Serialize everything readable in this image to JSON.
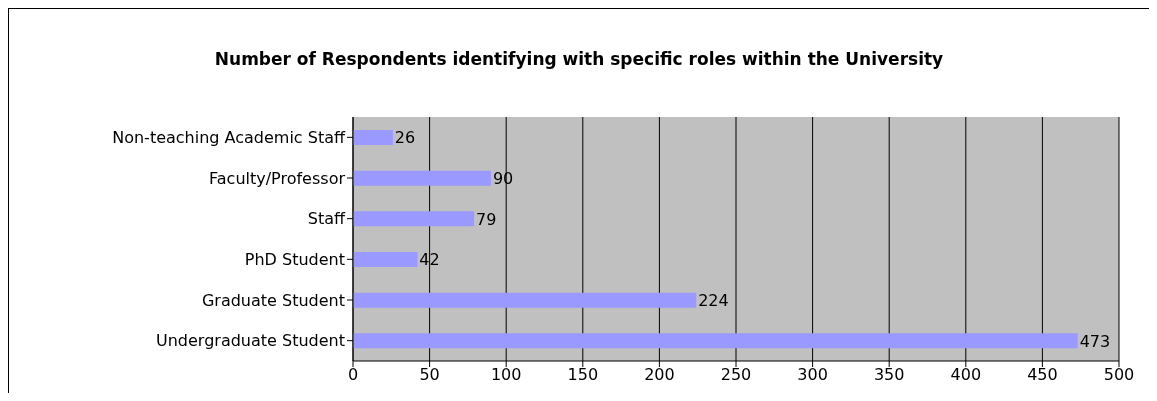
{
  "chart_data": {
    "type": "bar",
    "orientation": "horizontal",
    "title": "Number of Respondents identifying with specific roles within the University",
    "categories": [
      "Non-teaching Academic Staff",
      "Faculty/Professor",
      "Staff",
      "PhD Student",
      "Graduate Student",
      "Undergraduate Student"
    ],
    "values": [
      26,
      90,
      79,
      42,
      224,
      473
    ],
    "color": "#9999ff",
    "xlim": [
      0,
      500
    ],
    "xticks": [
      0,
      50,
      100,
      150,
      200,
      250,
      300,
      350,
      400,
      450,
      500
    ],
    "grid": "x",
    "data_labels": true
  }
}
